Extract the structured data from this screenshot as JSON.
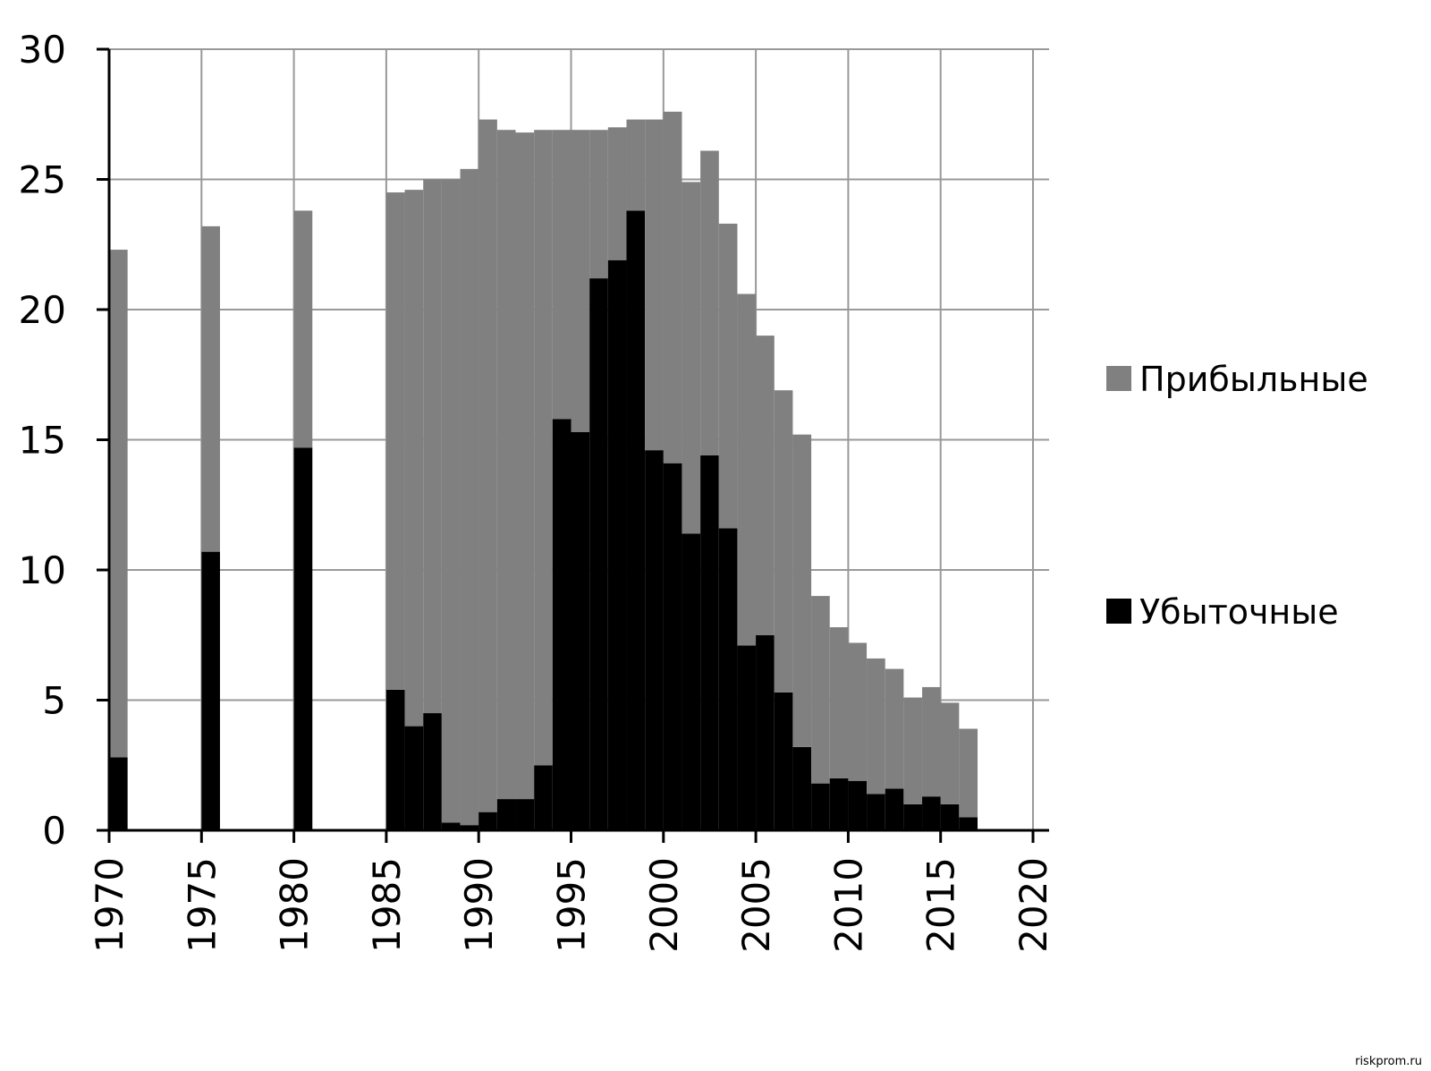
{
  "chart_data": {
    "type": "stacked-bar",
    "x": [
      1970,
      1975,
      1980,
      1985,
      1986,
      1987,
      1988,
      1989,
      1990,
      1991,
      1992,
      1993,
      1994,
      1995,
      1996,
      1997,
      1998,
      1999,
      2000,
      2001,
      2002,
      2003,
      2004,
      2005,
      2006,
      2007,
      2008,
      2009,
      2010,
      2011,
      2012,
      2013,
      2014,
      2015,
      2016
    ],
    "series": [
      {
        "name": "Убыточные",
        "color": "#000000",
        "values": [
          2.8,
          10.7,
          14.7,
          5.4,
          4.0,
          4.5,
          0.3,
          0.2,
          0.7,
          1.2,
          1.2,
          2.5,
          15.8,
          15.3,
          21.2,
          21.9,
          23.8,
          14.6,
          14.1,
          11.4,
          14.4,
          11.6,
          7.1,
          7.5,
          5.3,
          3.2,
          1.8,
          2.0,
          1.9,
          1.4,
          1.6,
          1.0,
          1.3,
          1.0,
          0.5
        ]
      },
      {
        "name": "Прибыльные",
        "color": "#808080",
        "values": [
          19.5,
          12.5,
          9.1,
          19.1,
          20.6,
          20.5,
          24.7,
          25.2,
          26.6,
          25.7,
          25.6,
          24.4,
          11.1,
          11.6,
          5.7,
          5.1,
          3.5,
          12.7,
          13.5,
          13.5,
          11.7,
          11.7,
          13.5,
          11.5,
          11.6,
          12.0,
          7.2,
          5.8,
          5.3,
          5.2,
          4.6,
          4.1,
          4.2,
          3.9,
          3.4
        ]
      }
    ],
    "xlim": [
      1970,
      2020
    ],
    "xticks": [
      1970,
      1975,
      1980,
      1985,
      1990,
      1995,
      2000,
      2005,
      2010,
      2015,
      2020
    ],
    "ylim": [
      0,
      30
    ],
    "yticks": [
      0,
      5,
      10,
      15,
      20,
      25,
      30
    ],
    "grid": true,
    "legend": "right"
  },
  "watermark": "riskprom.ru"
}
